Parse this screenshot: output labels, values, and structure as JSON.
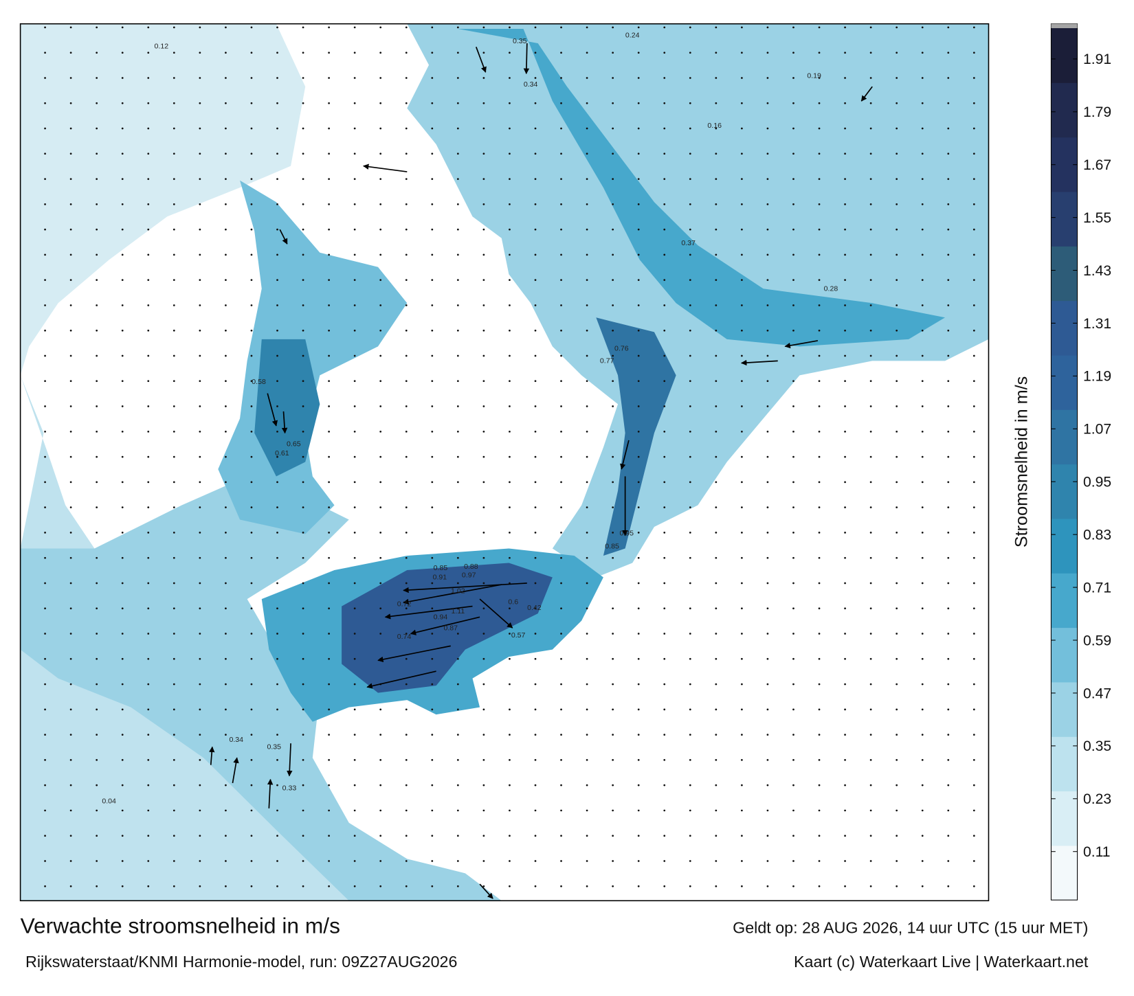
{
  "title": "Verwachte stroomsnelheid in m/s",
  "model_run": "Rijkswaterstaat/KNMI Harmonie-model, run: 09Z27AUG2026",
  "valid_time": "Geldt op: 28 AUG 2026, 14 uur UTC (15 uur MET)",
  "credit": "Kaart (c) Waterkaart Live | Waterkaart.net",
  "colorbar": {
    "label": "Stroomsnelheid in m/s",
    "lim": [
      0,
      1.98
    ],
    "ticks": [
      0.11,
      0.23,
      0.35,
      0.47,
      0.59,
      0.71,
      0.83,
      0.95,
      1.07,
      1.19,
      1.31,
      1.43,
      1.55,
      1.67,
      1.79,
      1.91
    ],
    "colors": [
      "#f3f9fb",
      "#d9eef5",
      "#bde2ee",
      "#9bd2e5",
      "#73bfdb",
      "#47a8cc",
      "#2e94bd",
      "#2f84ad",
      "#2f74a3",
      "#2e639c",
      "#2e5a94",
      "#2d5c78",
      "#283f6f",
      "#24325f",
      "#212a4f",
      "#1b1e38"
    ]
  },
  "current_labels": [
    1.02,
    1.11,
    0.91,
    0.97,
    0.88,
    0.85,
    0.94,
    0.87,
    0.72,
    0.74,
    0.76,
    0.77,
    0.95,
    0.85,
    0.65,
    0.61,
    0.58,
    0.6,
    0.57,
    0.42,
    0.35,
    0.34,
    0.24,
    0.37,
    0.33,
    0.35,
    0.34,
    0.28,
    0.19,
    0.16,
    0.12,
    0.04
  ]
}
